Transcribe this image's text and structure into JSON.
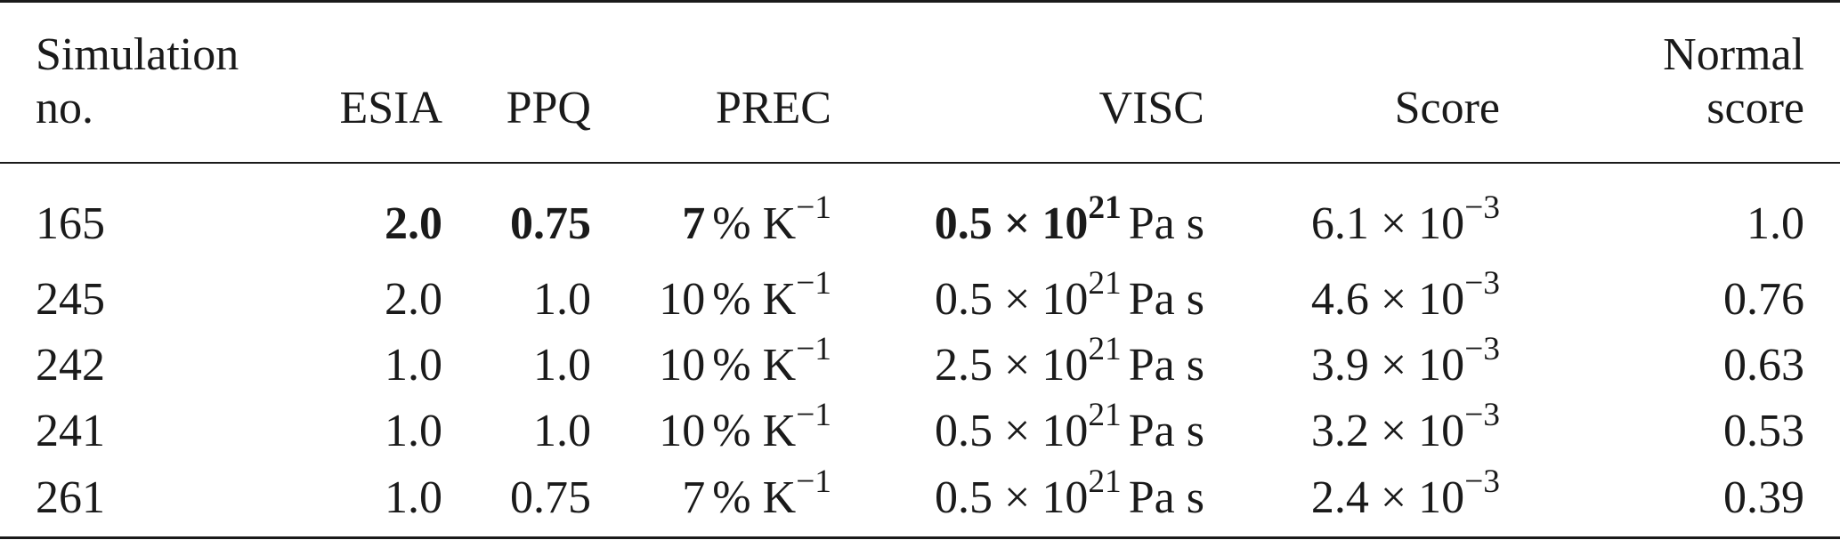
{
  "table": {
    "headers": {
      "simulation": [
        "Simulation",
        "no."
      ],
      "esia": "ESIA",
      "ppq": "PPQ",
      "prec": "PREC",
      "visc": "VISC",
      "score": "Score",
      "normal_score": [
        "Normal",
        "score"
      ]
    },
    "rows": [
      {
        "sim": "165",
        "esia": "2.0",
        "ppq": "0.75",
        "prec_value": "7",
        "prec_unit": "% K",
        "prec_exp": "−1",
        "visc_mantissa": "0.5 × 10",
        "visc_exp": "21",
        "visc_unit": "Pa s",
        "score_mantissa": "6.1 × 10",
        "score_exp": "−3",
        "normal_score": "1.0",
        "bold": true
      },
      {
        "sim": "245",
        "esia": "2.0",
        "ppq": "1.0",
        "prec_value": "10",
        "prec_unit": "% K",
        "prec_exp": "−1",
        "visc_mantissa": "0.5 × 10",
        "visc_exp": "21",
        "visc_unit": "Pa s",
        "score_mantissa": "4.6 × 10",
        "score_exp": "−3",
        "normal_score": "0.76",
        "bold": false
      },
      {
        "sim": "242",
        "esia": "1.0",
        "ppq": "1.0",
        "prec_value": "10",
        "prec_unit": "% K",
        "prec_exp": "−1",
        "visc_mantissa": "2.5 × 10",
        "visc_exp": "21",
        "visc_unit": "Pa s",
        "score_mantissa": "3.9 × 10",
        "score_exp": "−3",
        "normal_score": "0.63",
        "bold": false
      },
      {
        "sim": "241",
        "esia": "1.0",
        "ppq": "1.0",
        "prec_value": "10",
        "prec_unit": "% K",
        "prec_exp": "−1",
        "visc_mantissa": "0.5 × 10",
        "visc_exp": "21",
        "visc_unit": "Pa s",
        "score_mantissa": "3.2 × 10",
        "score_exp": "−3",
        "normal_score": "0.53",
        "bold": false
      },
      {
        "sim": "261",
        "esia": "1.0",
        "ppq": "0.75",
        "prec_value": "7",
        "prec_unit": "% K",
        "prec_exp": "−1",
        "visc_mantissa": "0.5 × 10",
        "visc_exp": "21",
        "visc_unit": "Pa s",
        "score_mantissa": "2.4 × 10",
        "score_exp": "−3",
        "normal_score": "0.39",
        "bold": false
      }
    ]
  }
}
